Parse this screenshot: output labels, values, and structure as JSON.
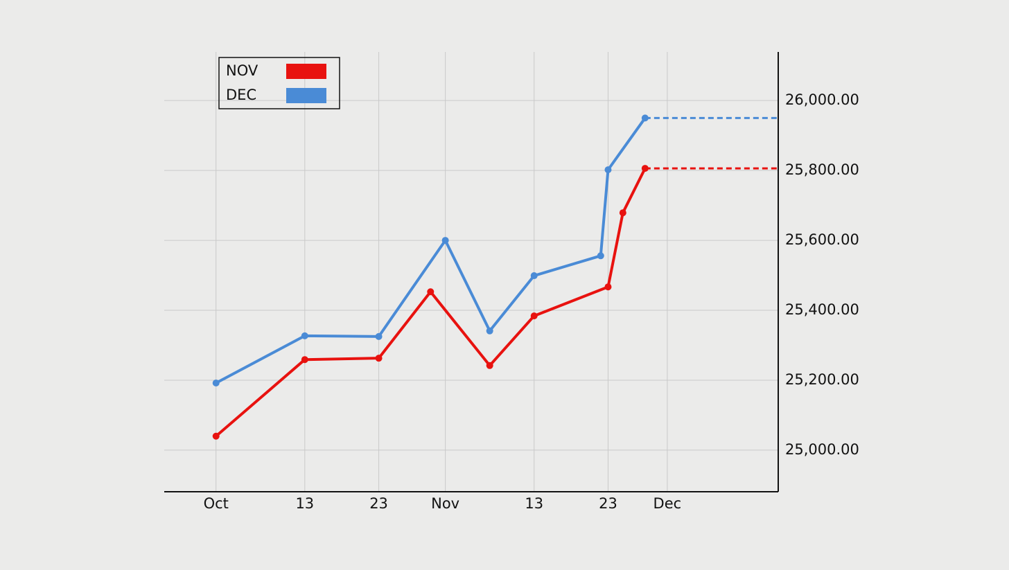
{
  "chart_data": {
    "type": "line",
    "x_blue": null,
    "series": [
      {
        "name": "NOV",
        "color": "#e8120f",
        "x": [
          "Oct 1",
          "Oct 13",
          "Oct 23",
          "Oct 30",
          "Nov 7",
          "Nov 13",
          "Nov 23",
          "Nov 25",
          "Nov 28"
        ],
        "values": [
          25040,
          25259,
          25263,
          25453,
          25242,
          25384,
          25467,
          25679,
          25806
        ]
      },
      {
        "name": "DEC",
        "color": "#4a8bd6",
        "x": [
          "Oct 1",
          "Oct 13",
          "Oct 23",
          "Nov 1",
          "Nov 7",
          "Nov 13",
          "Nov 22",
          "Nov 23",
          "Nov 28"
        ],
        "values": [
          25192,
          25327,
          25325,
          25600,
          25341,
          25499,
          25556,
          25802,
          25950
        ]
      }
    ],
    "xlim": [
      "Sep 24",
      "Dec 16"
    ],
    "xticks": [
      {
        "value": "Oct 1",
        "label": "Oct"
      },
      {
        "value": "Oct 13",
        "label": "13"
      },
      {
        "value": "Oct 23",
        "label": "23"
      },
      {
        "value": "Nov 1",
        "label": "Nov"
      },
      {
        "value": "Nov 13",
        "label": "13"
      },
      {
        "value": "Nov 23",
        "label": "23"
      },
      {
        "value": "Dec 1",
        "label": "Dec"
      }
    ],
    "ylim": [
      24881,
      26139
    ],
    "yticks": [
      {
        "value": 25000,
        "label": "25,000.00"
      },
      {
        "value": 25200,
        "label": "25,200.00"
      },
      {
        "value": 25400,
        "label": "25,400.00"
      },
      {
        "value": 25600,
        "label": "25,600.00"
      },
      {
        "value": 25800,
        "label": "25,800.00"
      },
      {
        "value": 26000,
        "label": "26,000.00"
      }
    ],
    "grid": true,
    "legend": "top-left",
    "y_axis_side": "right"
  }
}
